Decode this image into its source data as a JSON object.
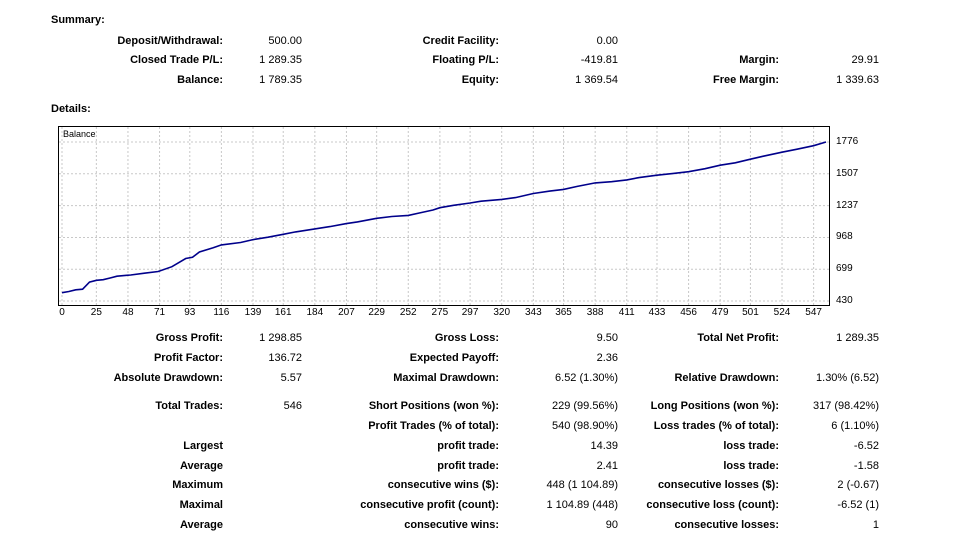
{
  "summary": {
    "title": "Summary:",
    "deposit_label": "Deposit/Withdrawal:",
    "deposit_value": "500.00",
    "closed_label": "Closed Trade P/L:",
    "closed_value": "1 289.35",
    "balance_label": "Balance:",
    "balance_value": "1 789.35",
    "credit_label": "Credit Facility:",
    "credit_value": "0.00",
    "floating_label": "Floating P/L:",
    "floating_value": "-419.81",
    "equity_label": "Equity:",
    "equity_value": "1 369.54",
    "margin_label": "Margin:",
    "margin_value": "29.91",
    "free_margin_label": "Free Margin:",
    "free_margin_value": "1 339.63"
  },
  "details": {
    "title": "Details:",
    "rows": [
      {
        "l1": "Gross Profit:",
        "v1": "1 298.85",
        "l2": "Gross Loss:",
        "v2": "9.50",
        "l3": "Total Net Profit:",
        "v3": "1 289.35"
      },
      {
        "l1": "Profit Factor:",
        "v1": "136.72",
        "l2": "Expected Payoff:",
        "v2": "2.36",
        "l3": "",
        "v3": ""
      },
      {
        "l1": "Absolute Drawdown:",
        "v1": "5.57",
        "l2": "Maximal Drawdown:",
        "v2": "6.52 (1.30%)",
        "l3": "Relative Drawdown:",
        "v3": "1.30% (6.52)"
      },
      {
        "l1": "Total Trades:",
        "v1": "546",
        "l2": "Short Positions (won %):",
        "v2": "229 (99.56%)",
        "l3": "Long Positions (won %):",
        "v3": "317 (98.42%)"
      },
      {
        "l1": "",
        "v1": "",
        "l2": "Profit Trades (% of total):",
        "v2": "540 (98.90%)",
        "l3": "Loss trades (% of total):",
        "v3": "6 (1.10%)"
      },
      {
        "l1": "Largest",
        "v1": "",
        "l2": "profit trade:",
        "v2": "14.39",
        "l3": "loss trade:",
        "v3": "-6.52"
      },
      {
        "l1": "Average",
        "v1": "",
        "l2": "profit trade:",
        "v2": "2.41",
        "l3": "loss trade:",
        "v3": "-1.58"
      },
      {
        "l1": "Maximum",
        "v1": "",
        "l2": "consecutive wins ($):",
        "v2": "448 (1 104.89)",
        "l3": "consecutive losses ($):",
        "v3": "2 (-0.67)"
      },
      {
        "l1": "Maximal",
        "v1": "",
        "l2": "consecutive profit (count):",
        "v2": "1 104.89 (448)",
        "l3": "consecutive loss (count):",
        "v3": "-6.52 (1)"
      },
      {
        "l1": "Average",
        "v1": "",
        "l2": "consecutive wins:",
        "v2": "90",
        "l3": "consecutive losses:",
        "v3": "1"
      }
    ]
  },
  "chart_data": {
    "type": "line",
    "legend": "Balance",
    "line_color": "#00008b",
    "grid": true,
    "xlim": [
      0,
      556
    ],
    "ylim": [
      430,
      1776
    ],
    "x_ticks": [
      "0",
      "25",
      "48",
      "71",
      "93",
      "116",
      "139",
      "161",
      "184",
      "207",
      "229",
      "252",
      "275",
      "297",
      "320",
      "343",
      "365",
      "388",
      "411",
      "433",
      "456",
      "479",
      "501",
      "524",
      "547"
    ],
    "y_ticks": [
      "1776",
      "1507",
      "1237",
      "968",
      "699",
      "430"
    ],
    "series": [
      {
        "x": [
          0,
          5,
          10,
          15,
          20,
          25,
          30,
          35,
          40,
          50,
          60,
          70,
          80,
          90,
          95,
          100,
          110,
          116,
          130,
          139,
          150,
          161,
          170,
          184,
          195,
          207,
          215,
          229,
          240,
          252,
          260,
          270,
          275,
          285,
          297,
          305,
          320,
          330,
          343,
          355,
          365,
          375,
          388,
          400,
          411,
          420,
          433,
          445,
          456,
          468,
          479,
          490,
          501,
          510,
          524,
          535,
          547,
          556
        ],
        "y": [
          500,
          510,
          525,
          530,
          590,
          605,
          610,
          625,
          640,
          650,
          665,
          680,
          720,
          790,
          800,
          845,
          880,
          905,
          925,
          950,
          970,
          995,
          1015,
          1040,
          1060,
          1085,
          1100,
          1130,
          1145,
          1155,
          1175,
          1200,
          1220,
          1240,
          1260,
          1275,
          1290,
          1305,
          1340,
          1360,
          1375,
          1400,
          1430,
          1440,
          1455,
          1475,
          1495,
          1510,
          1525,
          1550,
          1580,
          1600,
          1630,
          1655,
          1690,
          1715,
          1745,
          1776
        ]
      }
    ]
  }
}
